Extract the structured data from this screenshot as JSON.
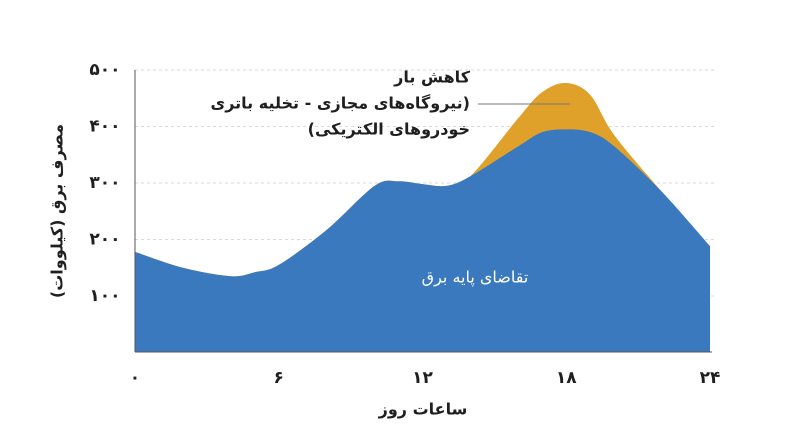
{
  "chart_data": {
    "type": "stacked-area",
    "x": [
      0,
      2,
      4,
      5,
      6,
      8,
      10,
      11,
      12,
      13,
      14,
      16,
      17,
      18,
      19,
      20,
      22,
      24
    ],
    "series": [
      {
        "name": "تقاضای پایه برق",
        "color": "#3a79bd",
        "values": [
          178,
          150,
          135,
          142,
          155,
          217,
          295,
          303,
          298,
          295,
          312,
          365,
          390,
          395,
          390,
          365,
          284,
          188
        ]
      },
      {
        "name": "کاهش بار",
        "color": "#e0a12a",
        "values": [
          0,
          0,
          0,
          0,
          0,
          0,
          0,
          0,
          0,
          0,
          0,
          50,
          71,
          82,
          66,
          20,
          0,
          0
        ]
      }
    ],
    "annotation": [
      "(نیروگاه‌های مجازی - تخلیه باتری",
      "خودروهای الکتریکی)"
    ],
    "xlabel": "ساعات روز",
    "ylabel": "مصرف برق (کیلووات)",
    "xlim": [
      0,
      24
    ],
    "xticks": [
      {
        "value": 0,
        "label": "۰"
      },
      {
        "value": 6,
        "label": "۶"
      },
      {
        "value": 12,
        "label": "۱۲"
      },
      {
        "value": 18,
        "label": "۱۸"
      },
      {
        "value": 24,
        "label": "۲۴"
      }
    ],
    "ylim": [
      0,
      500
    ],
    "yticks": [
      {
        "value": 100,
        "label": "۱۰۰"
      },
      {
        "value": 200,
        "label": "۲۰۰"
      },
      {
        "value": 300,
        "label": "۳۰۰"
      },
      {
        "value": 400,
        "label": "۴۰۰"
      },
      {
        "value": 500,
        "label": "۵۰۰"
      }
    ],
    "grid": true
  }
}
